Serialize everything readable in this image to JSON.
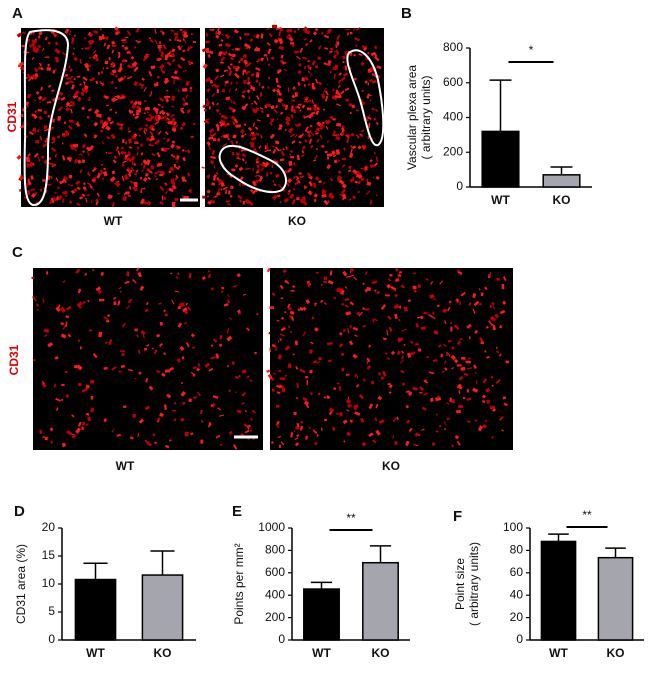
{
  "figure": {
    "panel_letters": [
      "A",
      "C"
    ],
    "stain_label": "CD31",
    "image_labels": [
      "WT",
      "KO"
    ]
  },
  "chart_data": [
    {
      "type": "bar",
      "panel": "B",
      "ylabel": [
        "Vascular plexa area",
        "( arbitrary units)"
      ],
      "categories": [
        "WT",
        "KO"
      ],
      "values": [
        320,
        70
      ],
      "errors": [
        295,
        45
      ],
      "colors": [
        "#000000",
        "#a5a5ad"
      ],
      "ylim": [
        0,
        800
      ],
      "yticks": [
        0,
        200,
        400,
        600,
        800
      ],
      "significance": "*"
    },
    {
      "type": "bar",
      "panel": "D",
      "ylabel": [
        "CD31 area (%)"
      ],
      "categories": [
        "WT",
        "KO"
      ],
      "values": [
        10.8,
        11.6
      ],
      "errors": [
        2.9,
        4.3
      ],
      "colors": [
        "#000000",
        "#a5a5ad"
      ],
      "ylim": [
        0,
        20
      ],
      "yticks": [
        0,
        5,
        10,
        15,
        20
      ]
    },
    {
      "type": "bar",
      "panel": "E",
      "ylabel": [
        "Points per mm²"
      ],
      "categories": [
        "WT",
        "KO"
      ],
      "values": [
        455,
        690
      ],
      "errors": [
        60,
        150
      ],
      "colors": [
        "#000000",
        "#a5a5ad"
      ],
      "ylim": [
        0,
        1000
      ],
      "yticks": [
        0,
        200,
        400,
        600,
        800,
        1000
      ],
      "significance": "**"
    },
    {
      "type": "bar",
      "panel": "F",
      "ylabel": [
        "Point size",
        "( arbitrary units)"
      ],
      "categories": [
        "WT",
        "KO"
      ],
      "values": [
        88,
        73.5
      ],
      "errors": [
        6.5,
        8.5
      ],
      "colors": [
        "#000000",
        "#a5a5ad"
      ],
      "ylim": [
        0,
        100
      ],
      "yticks": [
        0,
        20,
        40,
        60,
        80,
        100
      ],
      "significance": "**"
    }
  ]
}
